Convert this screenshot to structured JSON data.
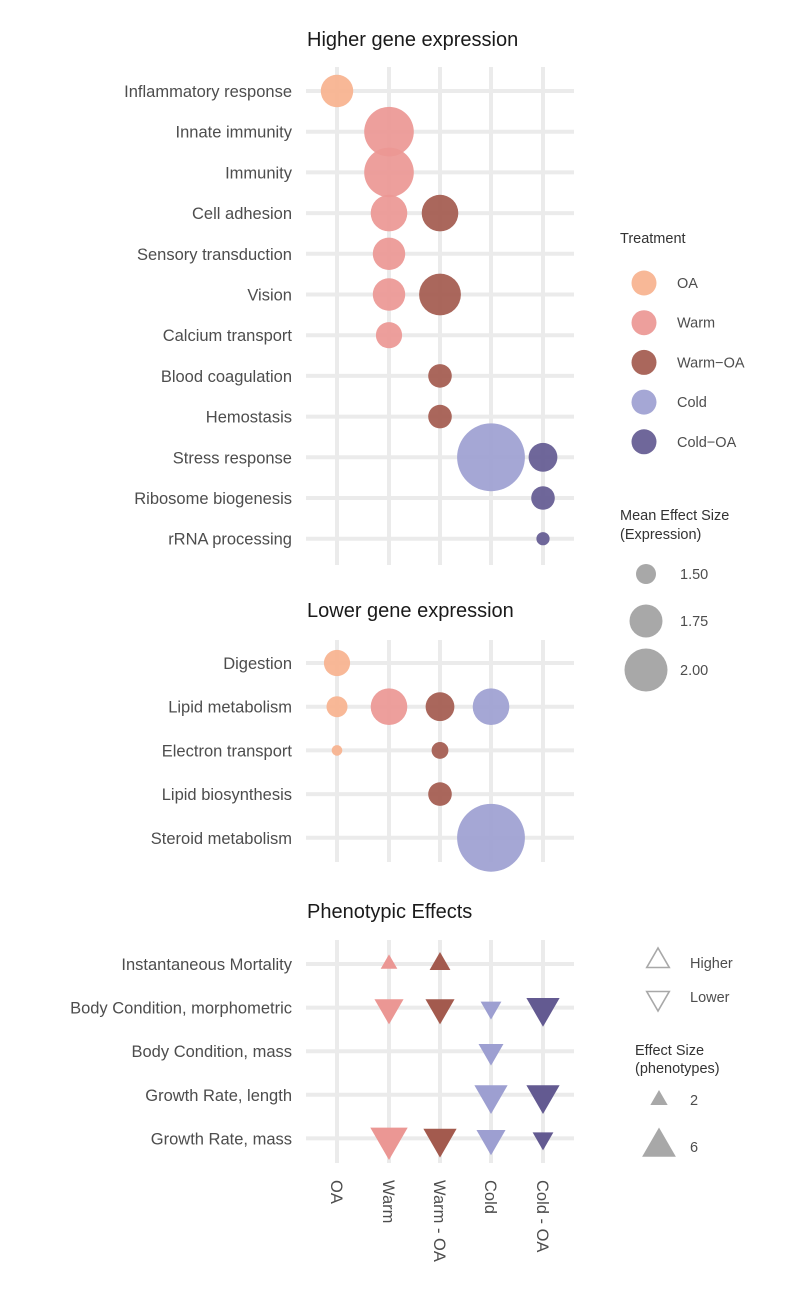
{
  "chart_data": {
    "type": "scatter",
    "x_categories": [
      "OA",
      "Warm",
      "Warm - OA",
      "Cold",
      "Cold - OA"
    ],
    "treatment_colors": {
      "OA": "#f7b28e",
      "Warm": "#eb9794",
      "Warm-OA": "#a35a4e",
      "Cold": "#9d9fd1",
      "Cold-OA": "#635a91"
    },
    "panels": [
      {
        "title": "Higher gene expression",
        "marker": "circle",
        "rows": [
          "Inflammatory response",
          "Innate immunity",
          "Immunity",
          "Cell adhesion",
          "Sensory transduction",
          "Vision",
          "Calcium transport",
          "Blood coagulation",
          "Hemostasis",
          "Stress response",
          "Ribosome biogenesis",
          "rRNA processing"
        ],
        "points": [
          {
            "row": "Inflammatory response",
            "x": "OA",
            "treatment": "OA",
            "size": 1.72
          },
          {
            "row": "Innate immunity",
            "x": "Warm",
            "treatment": "Warm",
            "size": 2.05
          },
          {
            "row": "Immunity",
            "x": "Warm",
            "treatment": "Warm",
            "size": 2.05
          },
          {
            "row": "Cell adhesion",
            "x": "Warm",
            "treatment": "Warm",
            "size": 1.8
          },
          {
            "row": "Cell adhesion",
            "x": "Warm - OA",
            "treatment": "Warm-OA",
            "size": 1.8
          },
          {
            "row": "Sensory transduction",
            "x": "Warm",
            "treatment": "Warm",
            "size": 1.72
          },
          {
            "row": "Vision",
            "x": "Warm",
            "treatment": "Warm",
            "size": 1.72
          },
          {
            "row": "Vision",
            "x": "Warm - OA",
            "treatment": "Warm-OA",
            "size": 1.9
          },
          {
            "row": "Calcium transport",
            "x": "Warm",
            "treatment": "Warm",
            "size": 1.6
          },
          {
            "row": "Blood coagulation",
            "x": "Warm - OA",
            "treatment": "Warm-OA",
            "size": 1.55
          },
          {
            "row": "Hemostasis",
            "x": "Warm - OA",
            "treatment": "Warm-OA",
            "size": 1.55
          },
          {
            "row": "Stress response",
            "x": "Cold",
            "treatment": "Cold",
            "size": 2.4
          },
          {
            "row": "Stress response",
            "x": "Cold - OA",
            "treatment": "Cold-OA",
            "size": 1.65
          },
          {
            "row": "Ribosome biogenesis",
            "x": "Cold - OA",
            "treatment": "Cold-OA",
            "size": 1.55
          },
          {
            "row": "rRNA processing",
            "x": "Cold - OA",
            "treatment": "Cold-OA",
            "size": 1.35
          }
        ]
      },
      {
        "title": "Lower gene expression",
        "marker": "circle",
        "rows": [
          "Digestion",
          "Lipid metabolism",
          "Electron transport",
          "Lipid biosynthesis",
          "Steroid metabolism"
        ],
        "points": [
          {
            "row": "Digestion",
            "x": "OA",
            "treatment": "OA",
            "size": 1.6
          },
          {
            "row": "Lipid metabolism",
            "x": "OA",
            "treatment": "OA",
            "size": 1.5
          },
          {
            "row": "Lipid metabolism",
            "x": "Warm",
            "treatment": "Warm",
            "size": 1.8
          },
          {
            "row": "Lipid metabolism",
            "x": "Warm - OA",
            "treatment": "Warm-OA",
            "size": 1.65
          },
          {
            "row": "Lipid metabolism",
            "x": "Cold",
            "treatment": "Cold",
            "size": 1.8
          },
          {
            "row": "Electron transport",
            "x": "OA",
            "treatment": "OA",
            "size": 1.3
          },
          {
            "row": "Electron transport",
            "x": "Warm - OA",
            "treatment": "Warm-OA",
            "size": 1.42
          },
          {
            "row": "Lipid biosynthesis",
            "x": "Warm - OA",
            "treatment": "Warm-OA",
            "size": 1.55
          },
          {
            "row": "Steroid metabolism",
            "x": "Cold",
            "treatment": "Cold",
            "size": 2.4
          }
        ]
      },
      {
        "title": "Phenotypic Effects",
        "marker": "triangle",
        "rows": [
          "Instantaneous Mortality",
          "Body Condition, morphometric",
          "Body Condition, mass",
          "Growth Rate, length",
          "Growth Rate, mass"
        ],
        "points": [
          {
            "row": "Instantaneous Mortality",
            "x": "Warm",
            "treatment": "Warm",
            "direction": "Higher",
            "size": 2
          },
          {
            "row": "Instantaneous Mortality",
            "x": "Warm - OA",
            "treatment": "Warm-OA",
            "direction": "Higher",
            "size": 3
          },
          {
            "row": "Body Condition, morphometric",
            "x": "Warm",
            "treatment": "Warm",
            "direction": "Lower",
            "size": 5
          },
          {
            "row": "Body Condition, morphometric",
            "x": "Warm - OA",
            "treatment": "Warm-OA",
            "direction": "Lower",
            "size": 5
          },
          {
            "row": "Body Condition, morphometric",
            "x": "Cold",
            "treatment": "Cold",
            "direction": "Lower",
            "size": 3
          },
          {
            "row": "Body Condition, morphometric",
            "x": "Cold - OA",
            "treatment": "Cold-OA",
            "direction": "Lower",
            "size": 6
          },
          {
            "row": "Body Condition, mass",
            "x": "Cold",
            "treatment": "Cold",
            "direction": "Lower",
            "size": 4
          },
          {
            "row": "Growth Rate, length",
            "x": "Cold",
            "treatment": "Cold",
            "direction": "Lower",
            "size": 6
          },
          {
            "row": "Growth Rate, length",
            "x": "Cold - OA",
            "treatment": "Cold-OA",
            "direction": "Lower",
            "size": 6
          },
          {
            "row": "Growth Rate, mass",
            "x": "Warm",
            "treatment": "Warm",
            "direction": "Lower",
            "size": 7
          },
          {
            "row": "Growth Rate, mass",
            "x": "Warm - OA",
            "treatment": "Warm-OA",
            "direction": "Lower",
            "size": 6
          },
          {
            "row": "Growth Rate, mass",
            "x": "Cold",
            "treatment": "Cold",
            "direction": "Lower",
            "size": 5
          },
          {
            "row": "Growth Rate, mass",
            "x": "Cold - OA",
            "treatment": "Cold-OA",
            "direction": "Lower",
            "size": 3
          }
        ]
      }
    ],
    "legends": {
      "treatment": {
        "title": "Treatment",
        "entries": [
          "OA",
          "Warm",
          "Warm−OA",
          "Cold",
          "Cold−OA"
        ],
        "keys": [
          "OA",
          "Warm",
          "Warm-OA",
          "Cold",
          "Cold-OA"
        ]
      },
      "expression_size": {
        "title_lines": [
          "Mean Effect Size",
          "(Expression)"
        ],
        "values": [
          1.5,
          1.75,
          2.0
        ],
        "labels": [
          "1.50",
          "1.75",
          "2.00"
        ]
      },
      "direction": {
        "entries": [
          "Higher",
          "Lower"
        ]
      },
      "phenotype_size": {
        "title_lines": [
          "Effect Size",
          "(phenotypes)"
        ],
        "values": [
          2,
          6
        ],
        "labels": [
          "2",
          "6"
        ]
      }
    },
    "grid": true,
    "legend_position": "right"
  }
}
